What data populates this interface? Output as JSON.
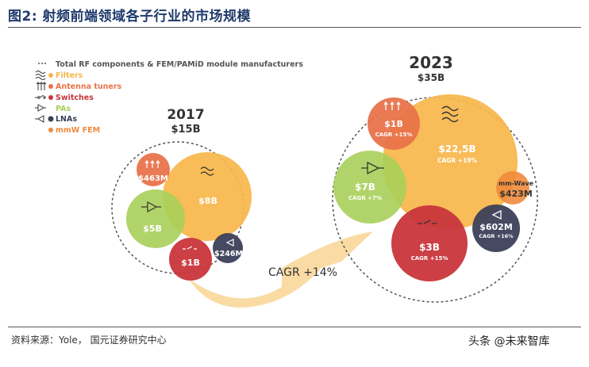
{
  "title": "图2: 射频前端领域各子行业的市场规模",
  "source": "资料来源：Yole，  国元证券研究中心",
  "watermark": "头条 @未来智库",
  "colors": {
    "title": "#1f3a6b",
    "filters": "#f7b64a",
    "antenna": "#e8734a",
    "switches": "#c8353b",
    "pas": "#a9cf5a",
    "lnas": "#3b3f58",
    "mmwave": "#ef8a3c",
    "arrow": "#f9d79a"
  },
  "chart_data": {
    "type": "bubble",
    "legend": [
      {
        "label": "Total RF components & FEM/PAMiD module manufacturers",
        "icon": "dashed-line-icon",
        "color": "#555555"
      },
      {
        "label": "Filters",
        "icon": "filter-wave-icon",
        "color": "#f7b64a"
      },
      {
        "label": "Antenna tuners",
        "icon": "antenna-tuner-icon",
        "color": "#e8734a"
      },
      {
        "label": "Switches",
        "icon": "switch-icon",
        "color": "#c8353b"
      },
      {
        "label": "PAs",
        "icon": "pa-triangle-icon",
        "color": "#a9cf5a"
      },
      {
        "label": "LNAs",
        "icon": "lna-triangle-icon",
        "color": "#3b3f58"
      },
      {
        "label": "mmW FEM",
        "icon": "dot-icon",
        "color": "#ef8a3c"
      }
    ],
    "years": [
      {
        "year": "2017",
        "total": "$15B",
        "segments": [
          {
            "name": "Filters",
            "label": "$8B",
            "value_usd_b": 8
          },
          {
            "name": "Antenna tuners",
            "label": "$463M",
            "value_usd_b": 0.463
          },
          {
            "name": "PAs",
            "label": "$5B",
            "value_usd_b": 5
          },
          {
            "name": "Switches",
            "label": "$1B",
            "value_usd_b": 1
          },
          {
            "name": "LNAs",
            "label": "$246M",
            "value_usd_b": 0.246
          }
        ]
      },
      {
        "year": "2023",
        "total": "$35B",
        "segments": [
          {
            "name": "Filters",
            "label": "$22,5B",
            "cagr": "CAGR +19%",
            "value_usd_b": 22.5
          },
          {
            "name": "Antenna tuners",
            "label": "$1B",
            "cagr": "CAGR +15%",
            "value_usd_b": 1
          },
          {
            "name": "PAs",
            "label": "$7B",
            "cagr": "CAGR +7%",
            "value_usd_b": 7
          },
          {
            "name": "Switches",
            "label": "$3B",
            "cagr": "CAGR +15%",
            "value_usd_b": 3
          },
          {
            "name": "LNAs",
            "label": "$602M",
            "cagr": "CAGR +16%",
            "value_usd_b": 0.602
          },
          {
            "name": "mmW FEM",
            "label": "$423M",
            "extra": "mm-Wave",
            "value_usd_b": 0.423
          }
        ]
      }
    ],
    "overall_cagr": "CAGR +14%"
  }
}
